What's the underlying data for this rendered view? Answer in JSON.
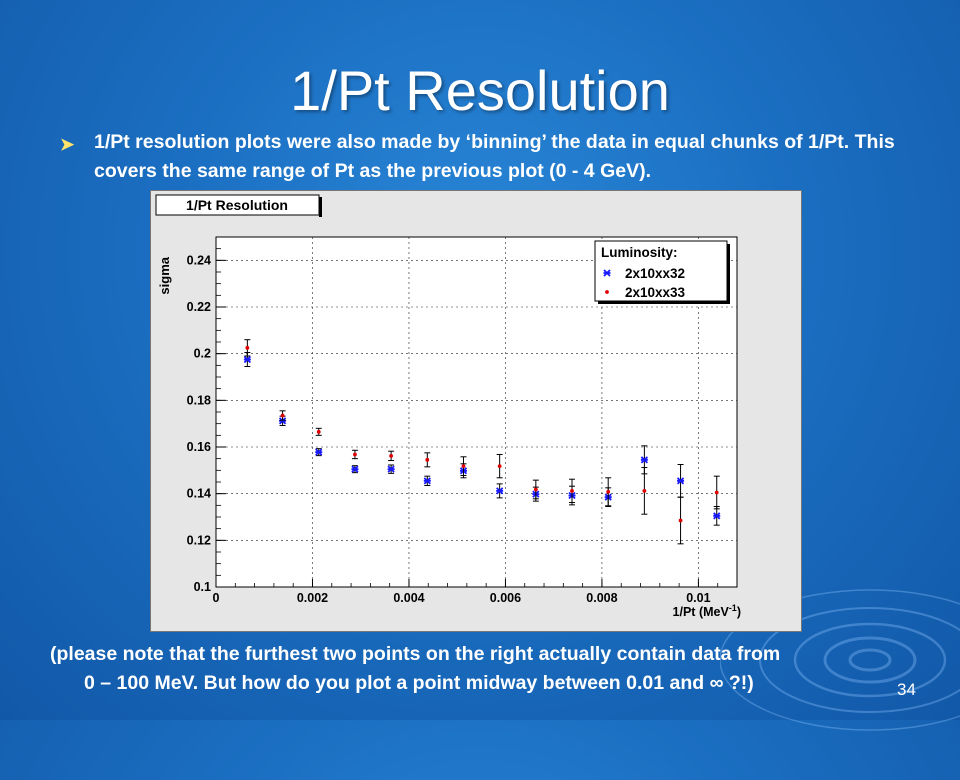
{
  "slide": {
    "title": "1/Pt Resolution",
    "bullet": "1/Pt resolution plots were also made by ‘binning’ the data in equal chunks of 1/Pt. This covers the same range of Pt as the previous plot (0 - 4 GeV).",
    "note_line1": "(please note that the furthest two points on the right actually contain data from",
    "note_line2": "0 – 100 MeV. But how do you plot a point midway between 0.01 and ∞ ?!)",
    "page_number": "34"
  },
  "chart_data": {
    "type": "scatter",
    "title": "1/Pt Resolution",
    "xlabel": "1/Pt (MeV",
    "xlabel_sup": "-1",
    "xlabel_end": ")",
    "ylabel": "sigma",
    "xlim": [
      0,
      0.0108
    ],
    "ylim": [
      0.1,
      0.25
    ],
    "x_ticks": [
      {
        "v": 0,
        "label": "0"
      },
      {
        "v": 0.002,
        "label": "0.002"
      },
      {
        "v": 0.004,
        "label": "0.004"
      },
      {
        "v": 0.006,
        "label": "0.006"
      },
      {
        "v": 0.008,
        "label": "0.008"
      },
      {
        "v": 0.01,
        "label": "0.01"
      }
    ],
    "y_ticks": [
      {
        "v": 0.1,
        "label": "0.1"
      },
      {
        "v": 0.12,
        "label": "0.12"
      },
      {
        "v": 0.14,
        "label": "0.14"
      },
      {
        "v": 0.16,
        "label": "0.16"
      },
      {
        "v": 0.18,
        "label": "0.18"
      },
      {
        "v": 0.2,
        "label": "0.2"
      },
      {
        "v": 0.22,
        "label": "0.22"
      },
      {
        "v": 0.24,
        "label": "0.24"
      }
    ],
    "grid": true,
    "legend": {
      "title": "Luminosity:",
      "placement": "top-right"
    },
    "series": [
      {
        "name": "2x10xx32",
        "color": "#1a1aff",
        "marker": "star",
        "x": [
          0.00065,
          0.00138,
          0.00213,
          0.00288,
          0.00363,
          0.00438,
          0.00513,
          0.00588,
          0.00663,
          0.00738,
          0.00813,
          0.00888,
          0.00963,
          0.01038
        ],
        "y": [
          0.1975,
          0.1712,
          0.1578,
          0.1505,
          0.1505,
          0.1455,
          0.1498,
          0.1412,
          0.1398,
          0.1392,
          0.1385,
          0.1545,
          0.1455,
          0.1305
        ],
        "err": [
          0.003,
          0.002,
          0.0015,
          0.0015,
          0.0018,
          0.002,
          0.003,
          0.003,
          0.003,
          0.004,
          0.004,
          0.006,
          0.007,
          0.004
        ]
      },
      {
        "name": "2x10xx33",
        "color": "#e00000",
        "marker": "dot",
        "x": [
          0.00065,
          0.00138,
          0.00213,
          0.00288,
          0.00363,
          0.00438,
          0.00513,
          0.00588,
          0.00663,
          0.00738,
          0.00813,
          0.00888,
          0.00963,
          0.01038
        ],
        "y": [
          0.2025,
          0.1735,
          0.1665,
          0.1568,
          0.1562,
          0.1545,
          0.1518,
          0.1518,
          0.1418,
          0.1412,
          0.1408,
          0.1412,
          0.1285,
          0.1405
        ],
        "err": [
          0.0035,
          0.002,
          0.0015,
          0.0018,
          0.002,
          0.003,
          0.004,
          0.005,
          0.004,
          0.005,
          0.006,
          0.01,
          0.01,
          0.007
        ]
      }
    ]
  }
}
